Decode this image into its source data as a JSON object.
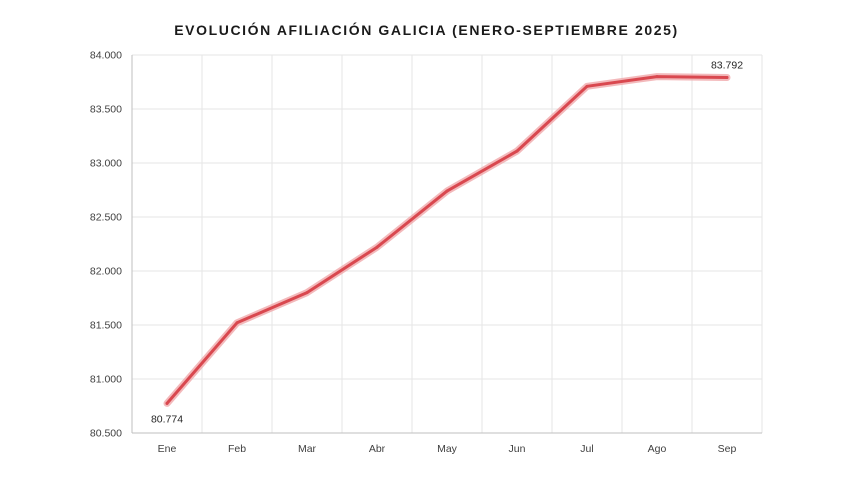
{
  "chart_data": {
    "type": "line",
    "title": "EVOLUCIÓN AFILIACIÓN  GALICIA  (ENERO-SEPTIEMBRE 2025)",
    "xlabel": "",
    "ylabel": "",
    "categories": [
      "Ene",
      "Feb",
      "Mar",
      "Abr",
      "May",
      "Jun",
      "Jul",
      "Ago",
      "Sep"
    ],
    "series": [
      {
        "values": [
          80774,
          81520,
          81800,
          82220,
          82740,
          83110,
          83710,
          83800,
          83792
        ]
      }
    ],
    "ylim": [
      80500,
      84000
    ],
    "yticks": [
      80500,
      81000,
      81500,
      82000,
      82500,
      83000,
      83500,
      84000
    ],
    "ytick_labels": [
      "80.500",
      "81.000",
      "81.500",
      "82.000",
      "82.500",
      "83.000",
      "83.500",
      "84.000"
    ],
    "data_labels": [
      {
        "index": 0,
        "text": "80.774",
        "position": "below"
      },
      {
        "index": 8,
        "text": "83.792",
        "position": "above"
      }
    ],
    "grid": true,
    "legend": "none",
    "colors": {
      "line": "#d9484f",
      "line_glow": "#f0a8aa",
      "grid": "#e6e6e6",
      "axis": "#bfbfbf",
      "text": "#404040"
    }
  }
}
